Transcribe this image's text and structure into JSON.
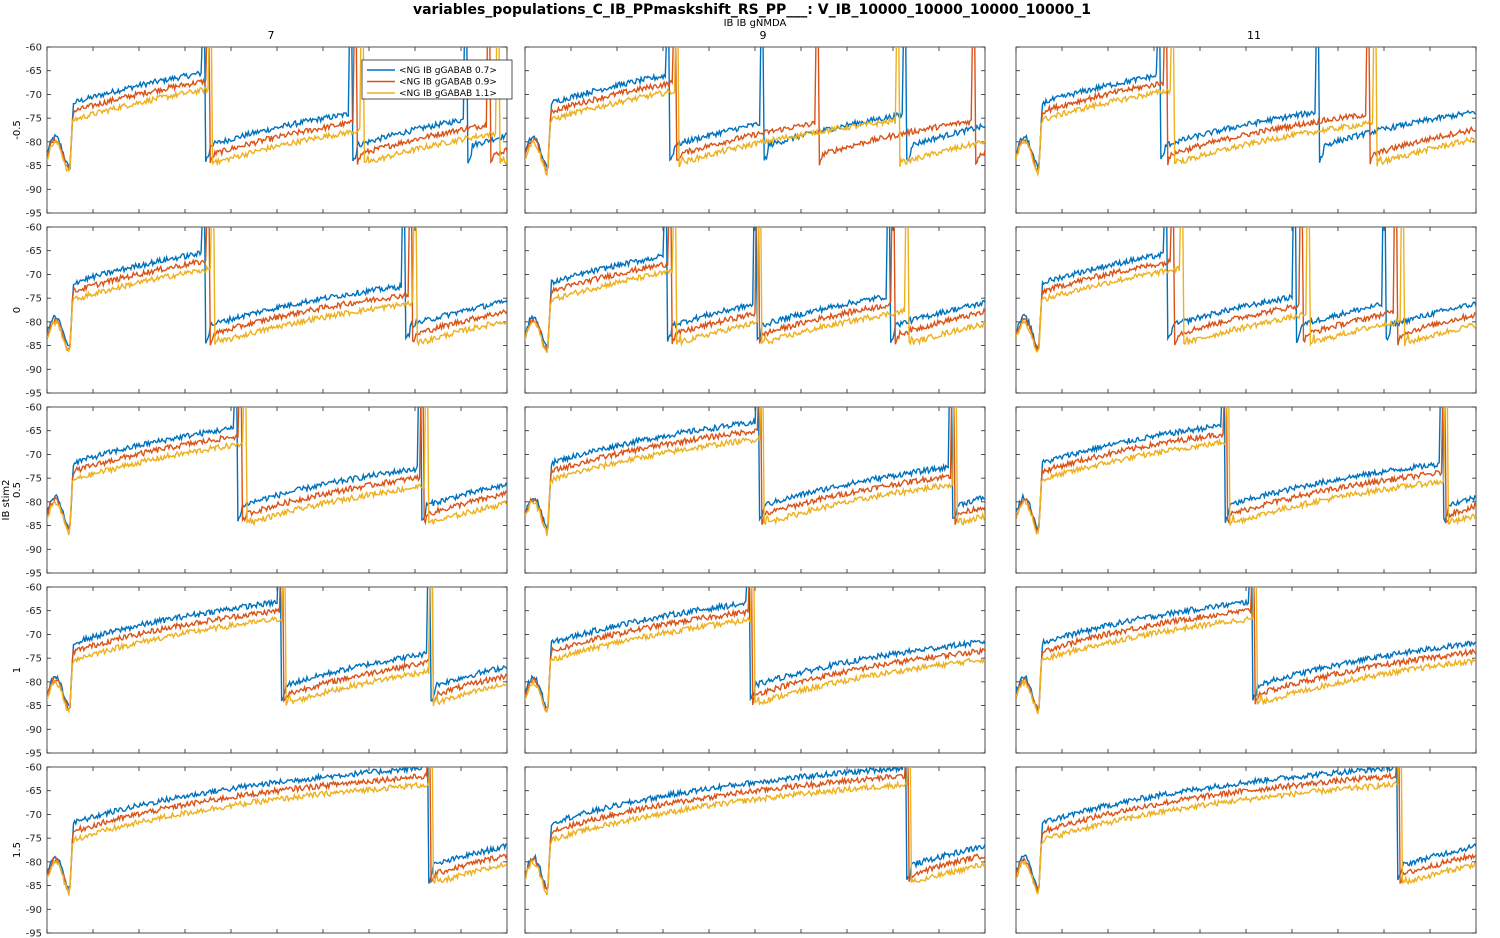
{
  "title": "variables_populations_C_IB_PPmaskshift_RS_PP___: V_IB_10000_10000_10000_10000_1",
  "column_variable_label": "IB IB gNMDA",
  "row_variable_label": "IB stim2",
  "column_labels": [
    "7",
    "9",
    "11"
  ],
  "row_labels": [
    "-0.5",
    "0",
    "0.5",
    "1",
    "1.5"
  ],
  "colors": {
    "blue": "#0072BD",
    "orange": "#D95319",
    "yellow": "#EDB120"
  },
  "legend": {
    "placement": "top-left of first panel",
    "entries": [
      "<NG IB gGABAB 0.7>",
      "<NG IB gGABAB 0.9>",
      "<NG IB gGABAB 1.1>"
    ]
  },
  "chart_data": {
    "type": "line",
    "layout": "small multiples 5 rows x 3 columns",
    "xlim": [
      0,
      2000
    ],
    "ylim": [
      -95,
      -60
    ],
    "x_ticks": [
      0,
      200,
      400,
      600,
      800,
      1000,
      1200,
      1400,
      1600,
      1800,
      2000
    ],
    "y_ticks": [
      -95,
      -90,
      -85,
      -80,
      -75,
      -70,
      -65,
      -60
    ],
    "series_names": [
      "<NG IB gGABAB 0.7>",
      "<NG IB gGABAB 0.9>",
      "<NG IB gGABAB 1.1>"
    ],
    "series_offsets_mV": [
      0,
      -1.8,
      -3.6
    ],
    "spike_events_ms": [
      [
        [
          680,
          1320,
          1820
        ],
        [
          700,
          1340,
          1920
        ],
        [
          710,
          1370,
          1960
        ]
      ],
      [
        [
          620,
          1030,
          1650
        ],
        [
          650,
          1270,
          1950
        ],
        [
          660,
          1620
        ]
      ],
      [
        [
          620,
          1310
        ],
        [
          650,
          1530
        ],
        [
          680,
          1560
        ]
      ],
      [
        [
          680,
          1550
        ],
        [
          700,
          1580
        ],
        [
          720,
          1600
        ]
      ],
      [
        [
          610,
          1000,
          1580
        ],
        [
          630,
          1010,
          1600
        ],
        [
          650,
          1020,
          1660
        ]
      ],
      [
        [
          650,
          1210,
          1600
        ],
        [
          680,
          1240,
          1650
        ],
        [
          720,
          1270,
          1680
        ]
      ],
      [
        [
          820,
          1620
        ],
        [
          840,
          1630
        ],
        [
          860,
          1650
        ]
      ],
      [
        [
          1010,
          1850
        ],
        [
          1020,
          1860
        ],
        [
          1030,
          1870
        ]
      ],
      [
        [
          900,
          1850
        ],
        [
          910,
          1860
        ],
        [
          920,
          1870
        ]
      ],
      [
        [
          1010,
          1660
        ],
        [
          1020,
          1670
        ],
        [
          1030,
          1670
        ]
      ],
      [
        [
          970
        ],
        [
          980
        ],
        [
          990
        ]
      ],
      [
        [
          1020
        ],
        [
          1030
        ],
        [
          1040
        ]
      ],
      [
        [
          1650
        ],
        [
          1660
        ],
        [
          1670
        ]
      ],
      [
        [
          1650
        ],
        [
          1660
        ],
        [
          1670
        ]
      ],
      [
        [
          1650
        ],
        [
          1660
        ],
        [
          1670
        ]
      ]
    ]
  }
}
